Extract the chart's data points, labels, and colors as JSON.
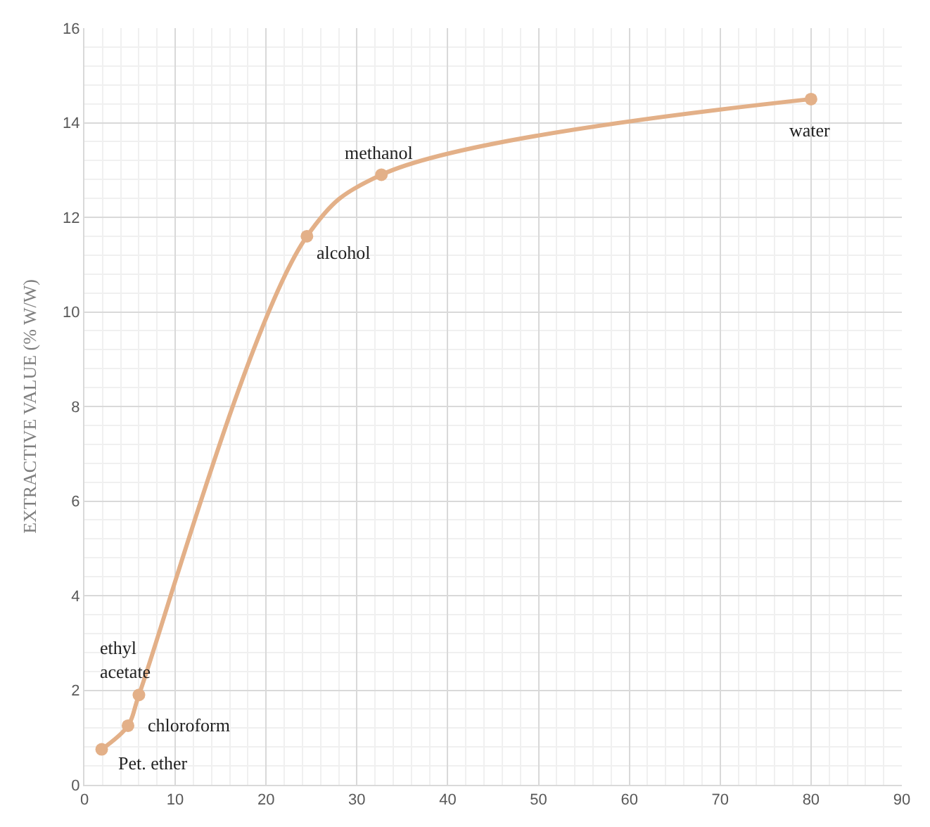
{
  "chart_data": {
    "type": "line",
    "ylabel": "EXTRACTIVE VALUE (% W/W)",
    "x": [
      1.9,
      4.8,
      6.0,
      24.5,
      32.7,
      80
    ],
    "series": [
      {
        "color": "#e3b088",
        "values": [
          0.75,
          1.25,
          1.9,
          11.6,
          12.9,
          14.5
        ]
      }
    ],
    "xlim": [
      0,
      90
    ],
    "xticks": [
      0,
      10,
      20,
      30,
      40,
      50,
      60,
      70,
      80,
      90
    ],
    "ylim": [
      0,
      16
    ],
    "yticks": [
      0,
      2,
      4,
      6,
      8,
      10,
      12,
      14,
      16
    ],
    "grid": true,
    "marker": "circle",
    "line_style": "solid",
    "legend": false,
    "annotations": [
      {
        "text": "Pet. ether",
        "x": 1.9,
        "y": 0.75
      },
      {
        "text": "chloroform",
        "x": 4.8,
        "y": 1.25
      },
      {
        "text": "ethyl\nacetate",
        "x": 6.0,
        "y": 1.9
      },
      {
        "text": "alcohol",
        "x": 24.5,
        "y": 11.6
      },
      {
        "text": "methanol",
        "x": 32.7,
        "y": 12.9
      },
      {
        "text": "water",
        "x": 80,
        "y": 14.5
      }
    ]
  }
}
